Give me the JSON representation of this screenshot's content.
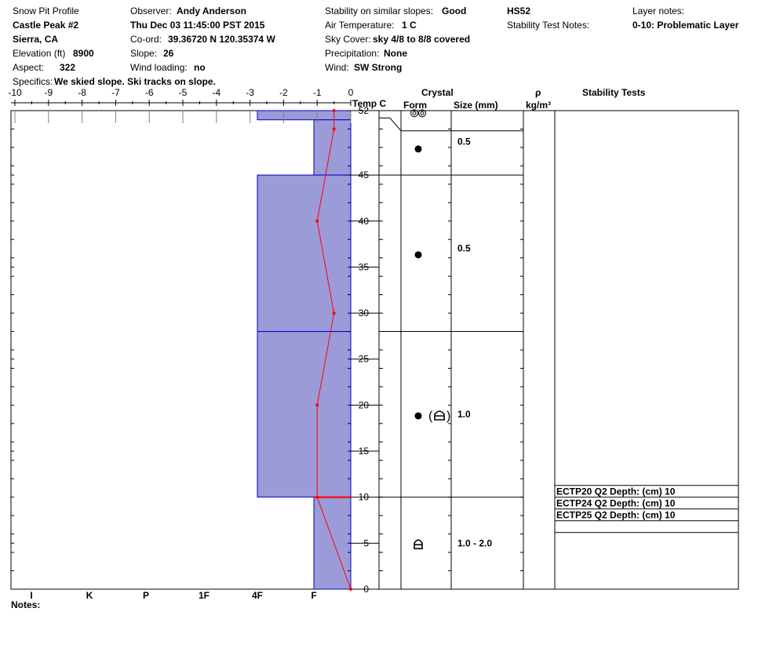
{
  "header": {
    "col1": {
      "title": "Snow Pit Profile",
      "location": "Castle Peak #2",
      "region": "Sierra, CA",
      "elevation_label": "Elevation (ft)",
      "elevation_value": "8900",
      "aspect_label": "Aspect:",
      "aspect_value": "322"
    },
    "col2": {
      "observer_label": "Observer:",
      "observer_value": "Andy Anderson",
      "datetime": "Thu Dec 03 11:45:00 PST 2015",
      "coord_label": "Co-ord:",
      "coord_value": "39.36720 N 120.35374 W",
      "slope_label": "Slope:",
      "slope_value": "26",
      "wind_loading_label": "Wind loading:",
      "wind_loading_value": "no"
    },
    "col3": {
      "stability_label": "Stability on similar slopes:",
      "stability_value": "Good",
      "air_temp_label": "Air Temperature:",
      "air_temp_value": "1 C",
      "sky_label": "Sky Cover:",
      "sky_value": "sky 4/8 to 8/8 covered",
      "precip_label": "Precipitation:",
      "precip_value": "None",
      "wind_label": "Wind:",
      "wind_value": "SW Strong"
    },
    "col4": {
      "hs": "HS52",
      "stability_notes_label": "Stability Test Notes:"
    },
    "col5": {
      "layer_notes_label": "Layer notes:",
      "layer_notes_value": "0-10: Problematic Layer"
    },
    "specifics_label": "Specifics:",
    "specifics_value": "We skied slope. Ski tracks on slope."
  },
  "columns": {
    "temp": "Temp C",
    "crystal": "Crystal",
    "form": "Form",
    "size": "Size (mm)",
    "rho": "ρ",
    "rho_units": "kg/m³",
    "stability_tests": "Stability Tests"
  },
  "notes_label": "Notes:",
  "colors": {
    "hardness_fill": "#9b9bd8",
    "layer_line": "#0000cc",
    "temp_line": "#ff0000"
  },
  "chart_data": {
    "type": "snow_pit_profile",
    "temp_axis": {
      "ticks": [
        "-10",
        "-9",
        "-8",
        "-7",
        "-6",
        "-5",
        "-4",
        "-3",
        "-2",
        "-1",
        "0"
      ],
      "range": [
        -10,
        0
      ]
    },
    "height_axis": {
      "ticks": [
        "52",
        "45",
        "40",
        "35",
        "30",
        "25",
        "20",
        "15",
        "10",
        "5",
        "0"
      ],
      "range": [
        0,
        52
      ]
    },
    "hardness_axis": {
      "labels": [
        "I",
        "K",
        "P",
        "1F",
        "4F",
        "F"
      ]
    },
    "temperature_profile": [
      {
        "h": 52,
        "t": -0.5
      },
      {
        "h": 50,
        "t": -0.5
      },
      {
        "h": 40,
        "t": -1.0
      },
      {
        "h": 30,
        "t": -0.5
      },
      {
        "h": 20,
        "t": -1.0
      },
      {
        "h": 10,
        "t": -1.0
      },
      {
        "h": 0,
        "t": 0.0
      }
    ],
    "layers": [
      {
        "top": 52,
        "bottom": 51,
        "hardness": "4F",
        "form": "precipitation-particles",
        "size": ""
      },
      {
        "top": 51,
        "bottom": 45,
        "hardness": "F",
        "form": "rounds",
        "size": "0.5"
      },
      {
        "top": 45,
        "bottom": 28,
        "hardness": "4F",
        "form": "rounds",
        "size": "0.5"
      },
      {
        "top": 28,
        "bottom": 10,
        "hardness": "4F",
        "form": "rounds-faceting",
        "size": "1.0"
      },
      {
        "top": 10,
        "bottom": 0,
        "hardness": "F",
        "form": "depth-hoar",
        "size": "1.0 - 2.0"
      }
    ],
    "stability_tests": [
      {
        "text": "ECTP20 Q2 Depth: (cm) 10"
      },
      {
        "text": "ECTP24 Q2 Depth: (cm) 10"
      },
      {
        "text": "ECTP25 Q2 Depth: (cm) 10"
      }
    ]
  }
}
